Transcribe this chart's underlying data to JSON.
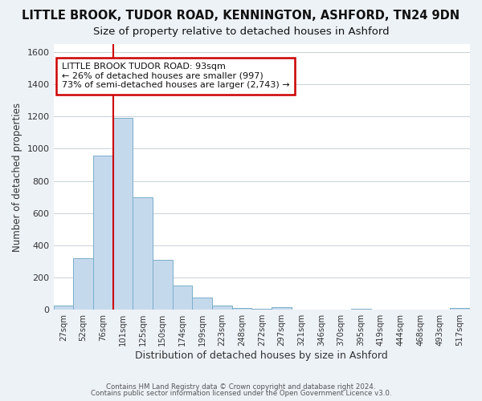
{
  "title": "LITTLE BROOK, TUDOR ROAD, KENNINGTON, ASHFORD, TN24 9DN",
  "subtitle": "Size of property relative to detached houses in Ashford",
  "xlabel": "Distribution of detached houses by size in Ashford",
  "ylabel": "Number of detached properties",
  "bar_labels": [
    "27sqm",
    "52sqm",
    "76sqm",
    "101sqm",
    "125sqm",
    "150sqm",
    "174sqm",
    "199sqm",
    "223sqm",
    "248sqm",
    "272sqm",
    "297sqm",
    "321sqm",
    "346sqm",
    "370sqm",
    "395sqm",
    "419sqm",
    "444sqm",
    "468sqm",
    "493sqm",
    "517sqm"
  ],
  "bar_values": [
    25,
    320,
    960,
    1190,
    700,
    310,
    150,
    75,
    25,
    12,
    5,
    15,
    3,
    2,
    0,
    5,
    0,
    0,
    0,
    0,
    10
  ],
  "bar_color": "#c5d9ed",
  "bar_edge_color": "#7aaec8",
  "vline_color": "#cc0000",
  "vline_pos": 2.5,
  "annotation_text": "LITTLE BROOK TUDOR ROAD: 93sqm\n← 26% of detached houses are smaller (997)\n73% of semi-detached houses are larger (2,743) →",
  "annotation_box_color": "#ffffff",
  "annotation_box_edge": "#cc0000",
  "ylim": [
    0,
    1650
  ],
  "yticks": [
    0,
    200,
    400,
    600,
    800,
    1000,
    1200,
    1400,
    1600
  ],
  "footer1": "Contains HM Land Registry data © Crown copyright and database right 2024.",
  "footer2": "Contains public sector information licensed under the Open Government Licence v3.0.",
  "bg_color": "#edf2f7",
  "plot_bg_color": "#ffffff",
  "grid_color": "#c8d0da",
  "title_fontsize": 10.5,
  "subtitle_fontsize": 9.5,
  "ylabel_fontsize": 8.5,
  "xlabel_fontsize": 9
}
